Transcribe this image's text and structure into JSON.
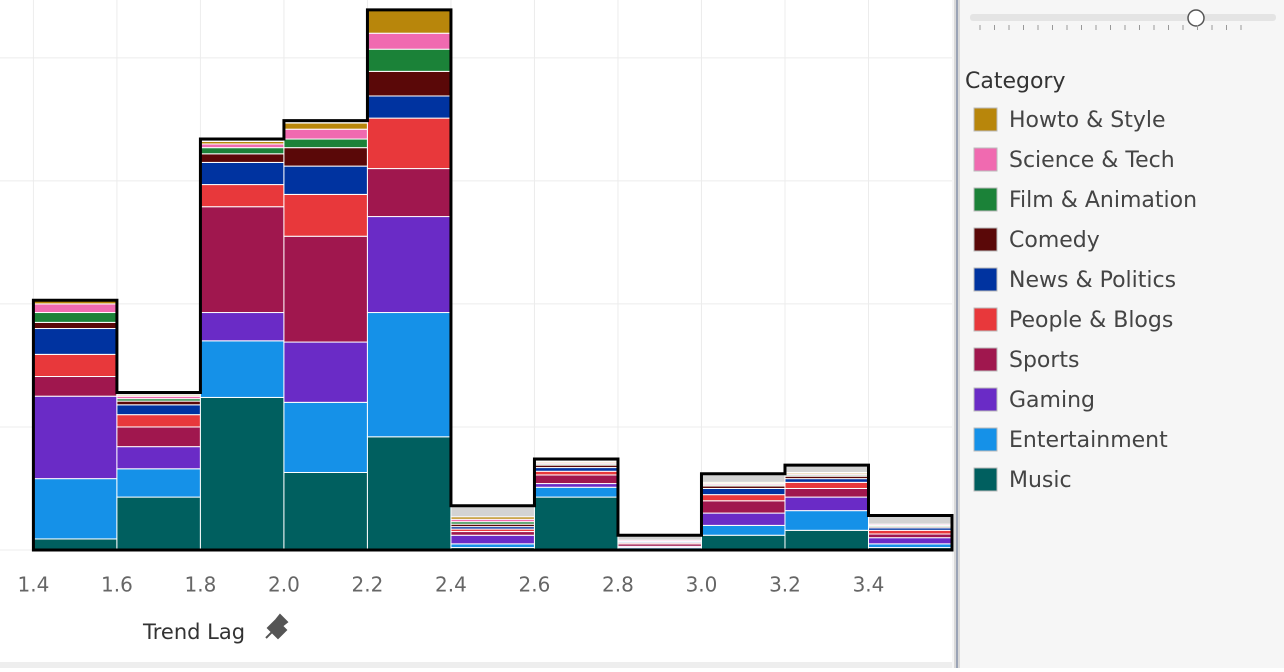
{
  "chart_data": {
    "type": "histogram",
    "x_label": "Trend Lag",
    "legend_title": "Category",
    "bins": [
      1.4,
      1.6,
      1.8,
      2.0,
      2.2,
      2.4,
      2.6,
      2.8,
      3.0,
      3.2,
      3.4,
      3.6
    ],
    "xlim": [
      1.32,
      3.6
    ],
    "xticks": [
      1.4,
      1.6,
      1.8,
      {
        "value": 2,
        "label": "2.0"
      },
      2.2,
      2.4,
      2.6,
      2.8,
      {
        "value": 3,
        "label": "3.0"
      },
      3.2,
      3.4
    ],
    "ylim": [
      0,
      4.47
    ],
    "yticks": [
      0,
      1,
      2,
      3,
      4
    ],
    "grid": true,
    "series": [
      {
        "color": "#d3d3d3",
        "values": [
          0,
          0.02,
          0.02,
          0.02,
          0,
          0.09,
          0.02,
          0.04,
          0.07,
          0.06,
          0.07
        ]
      },
      {
        "name": "Howto & Style",
        "color": "#b8860b",
        "values": [
          0.03,
          0.01,
          0.02,
          0.05,
          0.19,
          0.02,
          0.01,
          0,
          0.01,
          0.01,
          0
        ]
      },
      {
        "name": "Science & Tech",
        "color": "#f06ab0",
        "values": [
          0.07,
          0.02,
          0.03,
          0.08,
          0.13,
          0.02,
          0.01,
          0.01,
          0.01,
          0.01,
          0.01
        ]
      },
      {
        "name": "Film & Animation",
        "color": "#1b8238",
        "values": [
          0.08,
          0.02,
          0.05,
          0.07,
          0.18,
          0.02,
          0.01,
          0,
          0.01,
          0.01,
          0.01
        ]
      },
      {
        "name": "Comedy",
        "color": "#5a0808",
        "values": [
          0.05,
          0.03,
          0.07,
          0.15,
          0.2,
          0.02,
          0.02,
          0,
          0.02,
          0.02,
          0.01
        ]
      },
      {
        "name": "News & Politics",
        "color": "#0033a0",
        "values": [
          0.21,
          0.08,
          0.18,
          0.23,
          0.18,
          0.02,
          0.03,
          0.01,
          0.05,
          0.03,
          0.02
        ]
      },
      {
        "name": "People & Blogs",
        "color": "#e8383b",
        "values": [
          0.18,
          0.1,
          0.18,
          0.34,
          0.41,
          0.02,
          0.03,
          0.01,
          0.05,
          0.05,
          0.03
        ]
      },
      {
        "name": "Sports",
        "color": "#a0174e",
        "values": [
          0.16,
          0.16,
          0.86,
          0.86,
          0.39,
          0.03,
          0.07,
          0.02,
          0.1,
          0.07,
          0.03
        ]
      },
      {
        "name": "Gaming",
        "color": "#6a2bc6",
        "values": [
          0.67,
          0.18,
          0.23,
          0.49,
          0.78,
          0.07,
          0.03,
          0.01,
          0.1,
          0.11,
          0.05
        ]
      },
      {
        "name": "Entertainment",
        "color": "#1591e8",
        "values": [
          0.49,
          0.23,
          0.46,
          0.57,
          1.01,
          0.03,
          0.08,
          0.01,
          0.08,
          0.16,
          0.03
        ]
      },
      {
        "name": "Music",
        "color": "#005f5f",
        "values": [
          0.09,
          0.43,
          1.24,
          0.63,
          0.92,
          0.02,
          0.43,
          0.01,
          0.12,
          0.16,
          0.02
        ]
      }
    ]
  }
}
